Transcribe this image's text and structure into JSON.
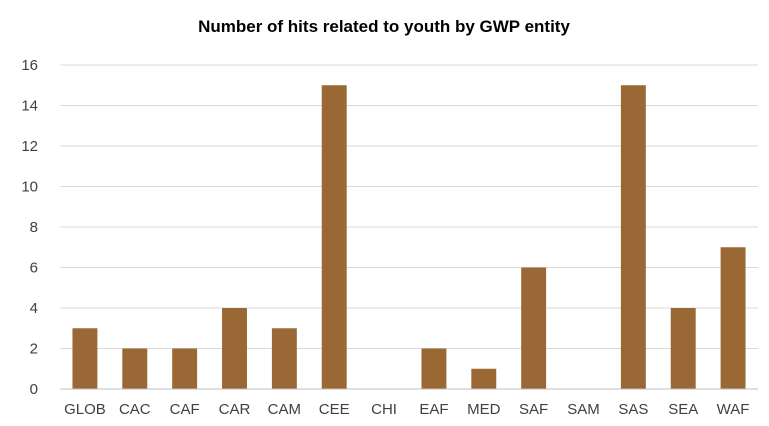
{
  "chart_data": {
    "type": "bar",
    "title": "Number of hits related to youth by GWP entity",
    "xlabel": "",
    "ylabel": "",
    "categories": [
      "GLOB",
      "CAC",
      "CAF",
      "CAR",
      "CAM",
      "CEE",
      "CHI",
      "EAF",
      "MED",
      "SAF",
      "SAM",
      "SAS",
      "SEA",
      "WAF"
    ],
    "values": [
      3,
      2,
      2,
      4,
      3,
      15,
      0,
      2,
      1,
      6,
      0,
      15,
      4,
      7
    ],
    "ylim": [
      0,
      16
    ],
    "yticks": [
      0,
      2,
      4,
      6,
      8,
      10,
      12,
      14,
      16
    ],
    "grid": true,
    "legend": "none",
    "bar_color": "#9a6834"
  }
}
